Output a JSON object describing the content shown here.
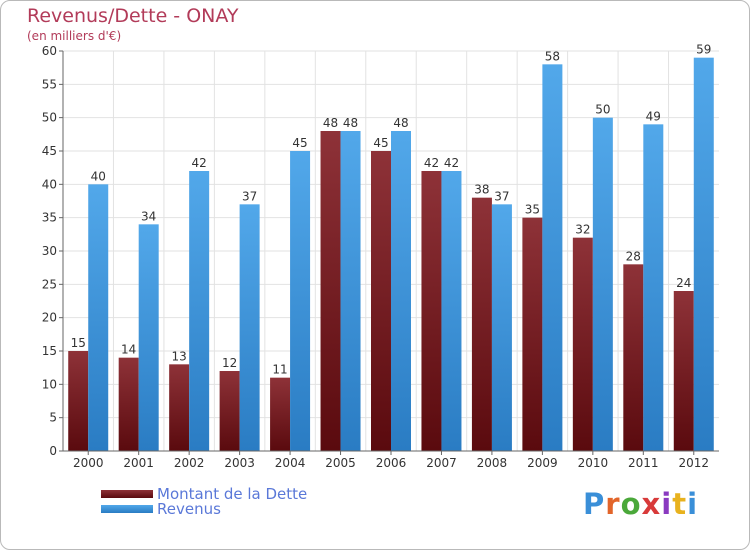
{
  "title": "Revenus/Dette - ONAY",
  "subtitle": "(en milliers d'€)",
  "logo_text": "Proxiti",
  "chart_data": {
    "type": "bar",
    "title": "Revenus/Dette - ONAY",
    "subtitle": "(en milliers d'€)",
    "xlabel": "",
    "ylabel": "",
    "categories": [
      "2000",
      "2001",
      "2002",
      "2003",
      "2004",
      "2005",
      "2006",
      "2007",
      "2008",
      "2009",
      "2010",
      "2011",
      "2012"
    ],
    "series": [
      {
        "name": "Montant de la Dette",
        "color": "#7a1a1f",
        "values": [
          15,
          14,
          13,
          12,
          11,
          48,
          45,
          42,
          38,
          35,
          32,
          28,
          24
        ]
      },
      {
        "name": "Revenus",
        "color": "#3a93d9",
        "values": [
          40,
          34,
          42,
          37,
          45,
          48,
          48,
          42,
          37,
          58,
          50,
          49,
          59
        ]
      }
    ],
    "ylim": [
      0,
      60
    ],
    "yticks": [
      0,
      5,
      10,
      15,
      20,
      25,
      30,
      35,
      40,
      45,
      50,
      55,
      60
    ],
    "grid": true,
    "legend": "bottom-left"
  }
}
